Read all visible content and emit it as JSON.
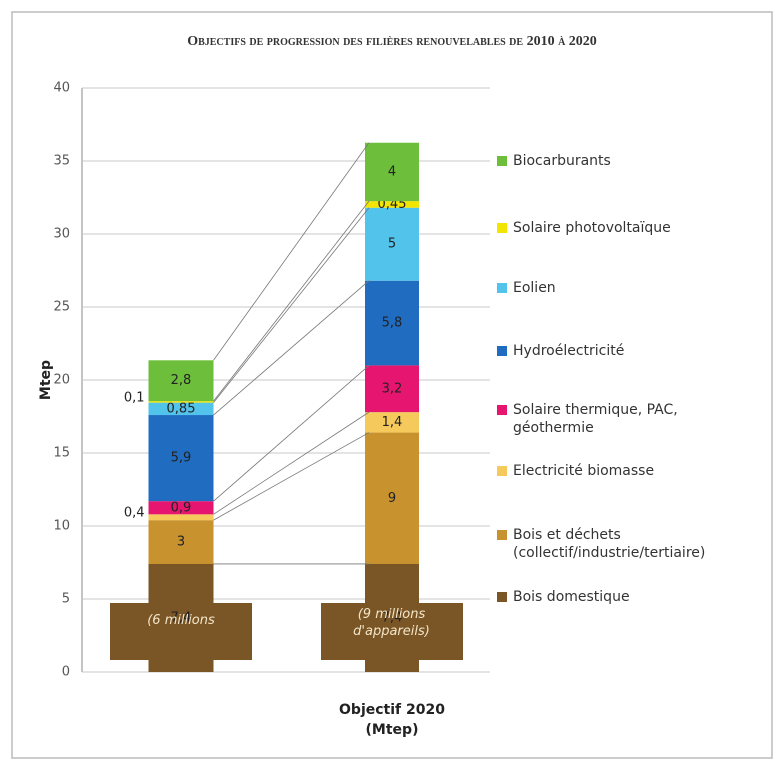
{
  "chart_data": {
    "type": "stacked_bar",
    "title": "Objectifs de progression des filières renouvelables de 2010 à 2020",
    "y_label": "Mtep",
    "categories": [
      null,
      "Objectif 2020 (Mtep)"
    ],
    "annotations": [
      "(6 millions",
      "(9 millions d'appareils)"
    ],
    "ylim": [
      0,
      40
    ],
    "yticks": [
      0,
      5,
      10,
      15,
      20,
      25,
      30,
      35,
      40
    ],
    "grid": true,
    "legend": "right",
    "series": [
      {
        "name": "Bois domestique",
        "color": "#7a5526",
        "values": [
          7.4,
          7.4
        ],
        "value_labels": [
          "7,4",
          "7,4"
        ]
      },
      {
        "name": "Bois et déchets (collectif/industrie/tertiaire)",
        "color": "#c8922e",
        "values": [
          3,
          9
        ],
        "value_labels": [
          "3",
          "9"
        ]
      },
      {
        "name": "Electricité biomasse",
        "color": "#f6c95c",
        "values": [
          0.4,
          1.4
        ],
        "value_labels": [
          "0,4",
          "1,4"
        ]
      },
      {
        "name": "Solaire thermique, PAC, géothermie",
        "color": "#e6156f",
        "values": [
          0.9,
          3.2
        ],
        "value_labels": [
          "0,9",
          "3,2"
        ]
      },
      {
        "name": "Hydroélectricité",
        "color": "#1f6cc0",
        "values": [
          5.9,
          5.8
        ],
        "value_labels": [
          "5,9",
          "5,8"
        ]
      },
      {
        "name": "Eolien",
        "color": "#52c3ea",
        "values": [
          0.85,
          5
        ],
        "value_labels": [
          "0,85",
          "5"
        ]
      },
      {
        "name": "Solaire photovoltaïque",
        "color": "#f2e500",
        "values": [
          0.1,
          0.45
        ],
        "value_labels": [
          "0,1",
          "0,45"
        ]
      },
      {
        "name": "Biocarburants",
        "color": "#6dbf3b",
        "values": [
          2.8,
          4
        ],
        "value_labels": [
          "2,8",
          "4"
        ]
      }
    ]
  }
}
